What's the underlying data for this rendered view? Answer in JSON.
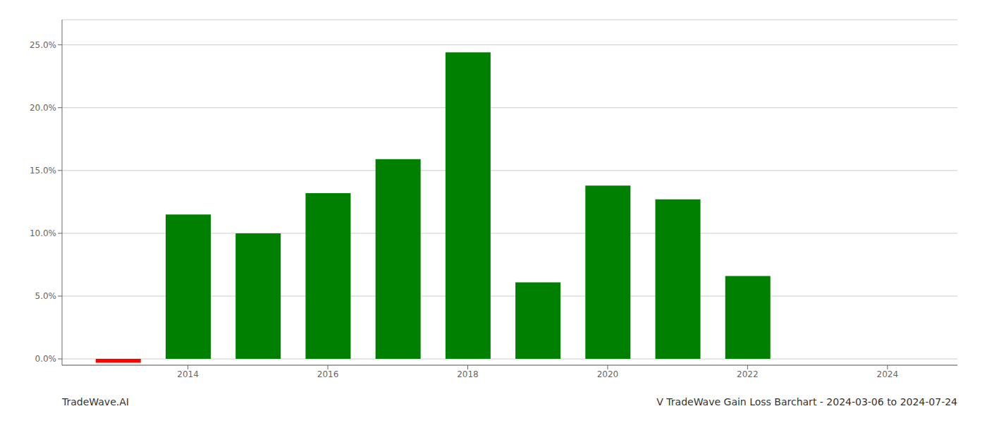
{
  "chart_data": {
    "type": "bar",
    "x": [
      2013,
      2014,
      2015,
      2016,
      2017,
      2018,
      2019,
      2020,
      2021,
      2022,
      2023
    ],
    "values": [
      -0.003,
      0.115,
      0.1,
      0.132,
      0.159,
      0.244,
      0.061,
      0.138,
      0.127,
      0.066,
      0.0
    ],
    "colors": [
      "#ff0000",
      "#008000",
      "#008000",
      "#008000",
      "#008000",
      "#008000",
      "#008000",
      "#008000",
      "#008000",
      "#008000",
      "#008000"
    ],
    "xlim": [
      2012.2,
      2025.0
    ],
    "xticks": [
      2014,
      2016,
      2018,
      2020,
      2022,
      2024
    ],
    "ylim": [
      -0.005,
      0.27
    ],
    "yticks": [
      {
        "value": 0.0,
        "label": "0.0%"
      },
      {
        "value": 0.05,
        "label": "5.0%"
      },
      {
        "value": 0.1,
        "label": "10.0%"
      },
      {
        "value": 0.15,
        "label": "15.0%"
      },
      {
        "value": 0.2,
        "label": "20.0%"
      },
      {
        "value": 0.25,
        "label": "25.0%"
      }
    ],
    "grid": true,
    "annotations": [
      "TradeWave.AI",
      "V TradeWave Gain Loss Barchart - 2024-03-06 to 2024-07-24"
    ]
  }
}
